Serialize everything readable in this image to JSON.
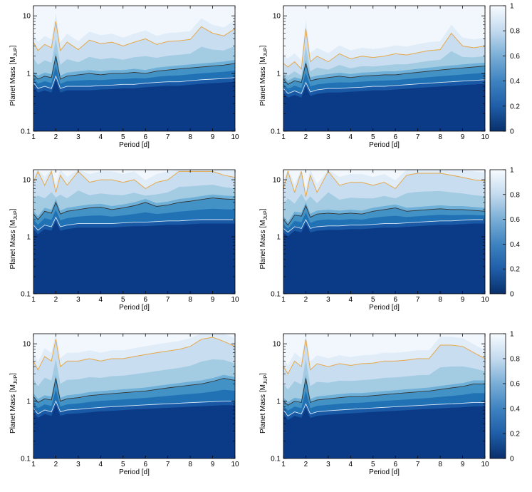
{
  "figure": {
    "panels": [
      {
        "row": 1,
        "col": 1,
        "has_colorbar": false
      },
      {
        "row": 1,
        "col": 2,
        "has_colorbar": true
      },
      {
        "row": 2,
        "col": 1,
        "has_colorbar": false
      },
      {
        "row": 2,
        "col": 2,
        "has_colorbar": true
      },
      {
        "row": 3,
        "col": 1,
        "has_colorbar": false
      },
      {
        "row": 3,
        "col": 2,
        "has_colorbar": true
      }
    ]
  },
  "chart_data": [
    {
      "type": "heatmap",
      "title": "",
      "xlabel": "Period [d]",
      "ylabel": "Planet Mass [MJUP]",
      "ylabel_main": "Planet Mass [M",
      "ylabel_sub": "JUP",
      "ylabel_end": "]",
      "xlim": [
        1,
        10
      ],
      "ylim": [
        0.1,
        15
      ],
      "yscale": "log",
      "xticks": [
        "1",
        "2",
        "3",
        "4",
        "5",
        "6",
        "7",
        "8",
        "9",
        "10"
      ],
      "yticks": [
        "0.1",
        "1",
        "10"
      ],
      "contours": {
        "orange": {
          "x": [
            1,
            1.2,
            1.5,
            1.8,
            2,
            2.2,
            2.5,
            3,
            3.5,
            4,
            4.5,
            5,
            5.5,
            6,
            6.5,
            7,
            7.5,
            8,
            8.5,
            9,
            9.5,
            10
          ],
          "y": [
            3.5,
            2.5,
            3.2,
            2.8,
            8,
            2.5,
            3.5,
            2.6,
            3.8,
            3.3,
            3.5,
            3.0,
            3.5,
            4.0,
            3.2,
            3.6,
            3.7,
            3.9,
            6.5,
            5.0,
            4.5,
            6.0
          ]
        },
        "black": {
          "x": [
            1,
            1.2,
            1.5,
            1.8,
            2,
            2.2,
            2.5,
            3,
            3.5,
            4,
            4.5,
            5,
            5.5,
            6,
            6.5,
            7,
            7.5,
            8,
            8.5,
            9,
            9.5,
            10
          ],
          "y": [
            0.95,
            0.8,
            0.9,
            0.85,
            2.0,
            0.8,
            0.9,
            0.95,
            1.0,
            0.95,
            1.0,
            1.0,
            1.05,
            1.0,
            1.1,
            1.15,
            1.2,
            1.25,
            1.3,
            1.35,
            1.4,
            1.5
          ]
        },
        "light": {
          "x": [
            1,
            1.2,
            1.5,
            1.8,
            2,
            2.2,
            2.5,
            3,
            3.5,
            4,
            4.5,
            5,
            5.5,
            6,
            6.5,
            7,
            7.5,
            8,
            8.5,
            9,
            9.5,
            10
          ],
          "y": [
            0.7,
            0.55,
            0.6,
            0.55,
            0.9,
            0.55,
            0.6,
            0.6,
            0.6,
            0.62,
            0.63,
            0.65,
            0.65,
            0.68,
            0.7,
            0.72,
            0.72,
            0.75,
            0.78,
            0.8,
            0.82,
            0.85
          ]
        }
      }
    },
    {
      "type": "heatmap",
      "title": "",
      "xlabel": "Period [d]",
      "ylabel": "Planet Mass [MJUP]",
      "ylabel_main": "Planet Mass [M",
      "ylabel_sub": "JUP",
      "ylabel_end": "]",
      "xlim": [
        1,
        10
      ],
      "ylim": [
        0.1,
        15
      ],
      "yscale": "log",
      "xticks": [
        "1",
        "2",
        "3",
        "4",
        "5",
        "6",
        "7",
        "8",
        "9",
        "10"
      ],
      "yticks": [
        "0.1",
        "1",
        "10"
      ],
      "colorbar": {
        "ticks": [
          "0",
          "0.2",
          "0.4",
          "0.6",
          "0.8",
          "1"
        ],
        "range": [
          0,
          1
        ]
      },
      "contours": {
        "orange": {
          "x": [
            1,
            1.2,
            1.5,
            1.8,
            2,
            2.2,
            2.5,
            3,
            3.5,
            4,
            4.5,
            5,
            5.5,
            6,
            6.5,
            7,
            7.5,
            8,
            8.5,
            9,
            9.5,
            10
          ],
          "y": [
            1.5,
            1.3,
            1.6,
            1.2,
            6.0,
            1.6,
            2.0,
            1.6,
            2.2,
            1.8,
            2.0,
            1.9,
            2.0,
            2.2,
            2.1,
            2.3,
            2.5,
            2.6,
            5.0,
            3.0,
            2.8,
            3.0
          ]
        },
        "black": {
          "x": [
            1,
            1.2,
            1.5,
            1.8,
            2,
            2.2,
            2.5,
            3,
            3.5,
            4,
            4.5,
            5,
            5.5,
            6,
            6.5,
            7,
            7.5,
            8,
            8.5,
            9,
            9.5,
            10
          ],
          "y": [
            0.8,
            0.65,
            0.75,
            0.7,
            1.5,
            0.75,
            0.8,
            0.85,
            0.9,
            0.85,
            0.9,
            0.92,
            0.95,
            0.95,
            1.0,
            1.05,
            1.1,
            1.15,
            1.2,
            1.25,
            1.3,
            1.35
          ]
        },
        "light": {
          "x": [
            1,
            1.2,
            1.5,
            1.8,
            2,
            2.2,
            2.5,
            3,
            3.5,
            4,
            4.5,
            5,
            5.5,
            6,
            6.5,
            7,
            7.5,
            8,
            8.5,
            9,
            9.5,
            10
          ],
          "y": [
            0.55,
            0.45,
            0.5,
            0.45,
            0.7,
            0.48,
            0.52,
            0.55,
            0.55,
            0.57,
            0.58,
            0.6,
            0.6,
            0.62,
            0.64,
            0.66,
            0.68,
            0.7,
            0.72,
            0.74,
            0.76,
            0.78
          ]
        }
      }
    },
    {
      "type": "heatmap",
      "title": "",
      "xlabel": "Period [d]",
      "ylabel": "Planet Mass [MJUP]",
      "ylabel_main": "Planet Mass [M",
      "ylabel_sub": "JUP",
      "ylabel_end": "]",
      "xlim": [
        1,
        10
      ],
      "ylim": [
        0.1,
        15
      ],
      "yscale": "log",
      "xticks": [
        "1",
        "2",
        "3",
        "4",
        "5",
        "6",
        "7",
        "8",
        "9",
        "10"
      ],
      "yticks": [
        "0.1",
        "1",
        "10"
      ],
      "contours": {
        "orange": {
          "x": [
            1,
            1.2,
            1.5,
            1.8,
            2,
            2.2,
            2.5,
            3,
            3.5,
            4,
            4.5,
            5,
            5.5,
            6,
            6.5,
            7,
            7.5,
            8,
            8.5,
            9,
            9.5,
            10
          ],
          "y": [
            9.0,
            14,
            8.0,
            14,
            6.0,
            12,
            8.0,
            14,
            9.0,
            10,
            10,
            9.0,
            10,
            7.0,
            9.0,
            10,
            14,
            14,
            14,
            14,
            12,
            11
          ]
        },
        "black": {
          "x": [
            1,
            1.2,
            1.5,
            1.8,
            2,
            2.2,
            2.5,
            3,
            3.5,
            4,
            4.5,
            5,
            5.5,
            6,
            6.5,
            7,
            7.5,
            8,
            8.5,
            9,
            9.5,
            10
          ],
          "y": [
            2.5,
            2.0,
            2.8,
            2.6,
            4.0,
            2.5,
            2.8,
            3.0,
            3.2,
            3.3,
            3.0,
            3.2,
            3.5,
            4.0,
            3.4,
            3.6,
            4.0,
            4.2,
            4.5,
            4.8,
            4.6,
            4.5
          ]
        },
        "light": {
          "x": [
            1,
            1.2,
            1.5,
            1.8,
            2,
            2.2,
            2.5,
            3,
            3.5,
            4,
            4.5,
            5,
            5.5,
            6,
            6.5,
            7,
            7.5,
            8,
            8.5,
            9,
            9.5,
            10
          ],
          "y": [
            1.6,
            1.3,
            1.6,
            1.5,
            2.2,
            1.5,
            1.6,
            1.7,
            1.7,
            1.7,
            1.7,
            1.75,
            1.8,
            1.8,
            1.85,
            1.9,
            1.9,
            1.95,
            2.0,
            2.0,
            2.0,
            2.0
          ]
        }
      }
    },
    {
      "type": "heatmap",
      "title": "",
      "xlabel": "Period [d]",
      "ylabel": "Planet Mass [MJUP]",
      "ylabel_main": "Planet Mass [M",
      "ylabel_sub": "JUP",
      "ylabel_end": "]",
      "xlim": [
        1,
        10
      ],
      "ylim": [
        0.1,
        15
      ],
      "yscale": "log",
      "xticks": [
        "1",
        "2",
        "3",
        "4",
        "5",
        "6",
        "7",
        "8",
        "9",
        "10"
      ],
      "yticks": [
        "0.1",
        "1",
        "10"
      ],
      "colorbar": {
        "ticks": [
          "0",
          "0.2",
          "0.4",
          "0.6",
          "0.8",
          "1"
        ],
        "range": [
          0,
          1
        ]
      },
      "contours": {
        "orange": {
          "x": [
            1,
            1.2,
            1.5,
            1.8,
            2,
            2.2,
            2.5,
            3,
            3.5,
            4,
            4.5,
            5,
            5.5,
            6,
            6.5,
            7,
            7.5,
            8,
            8.5,
            9,
            9.5,
            10
          ],
          "y": [
            7.0,
            14,
            6.0,
            14,
            5.0,
            12,
            6.0,
            14,
            8.0,
            9.0,
            9.0,
            8.0,
            9.0,
            7.0,
            12,
            13,
            13,
            13,
            12,
            11,
            10,
            9.5
          ]
        },
        "black": {
          "x": [
            1,
            1.2,
            1.5,
            1.8,
            2,
            2.2,
            2.5,
            3,
            3.5,
            4,
            4.5,
            5,
            5.5,
            6,
            6.5,
            7,
            7.5,
            8,
            8.5,
            9,
            9.5,
            10
          ],
          "y": [
            2.0,
            1.6,
            2.4,
            2.3,
            3.5,
            2.2,
            2.5,
            2.6,
            2.5,
            2.6,
            2.5,
            2.8,
            3.0,
            3.2,
            2.8,
            2.9,
            3.0,
            3.1,
            3.0,
            3.0,
            2.9,
            2.8
          ]
        },
        "light": {
          "x": [
            1,
            1.2,
            1.5,
            1.8,
            2,
            2.2,
            2.5,
            3,
            3.5,
            4,
            4.5,
            5,
            5.5,
            6,
            6.5,
            7,
            7.5,
            8,
            8.5,
            9,
            9.5,
            10
          ],
          "y": [
            1.4,
            1.2,
            1.5,
            1.4,
            2.0,
            1.4,
            1.5,
            1.55,
            1.55,
            1.6,
            1.6,
            1.65,
            1.7,
            1.7,
            1.75,
            1.8,
            1.85,
            1.9,
            1.9,
            1.95,
            2.0,
            2.0
          ]
        }
      }
    },
    {
      "type": "heatmap",
      "title": "",
      "xlabel": "Period [d]",
      "ylabel": "Planet Mass [MJUP]",
      "ylabel_main": "Planet Mass [M",
      "ylabel_sub": "JUP",
      "ylabel_end": "]",
      "xlim": [
        1,
        10
      ],
      "ylim": [
        0.1,
        15
      ],
      "yscale": "log",
      "xticks": [
        "1",
        "2",
        "3",
        "4",
        "5",
        "6",
        "7",
        "8",
        "9",
        "10"
      ],
      "yticks": [
        "0.1",
        "1",
        "10"
      ],
      "contours": {
        "orange": {
          "x": [
            1,
            1.2,
            1.5,
            1.8,
            2,
            2.2,
            2.5,
            3,
            3.5,
            4,
            4.5,
            5,
            5.5,
            6,
            6.5,
            7,
            7.5,
            8,
            8.5,
            9,
            9.5,
            10
          ],
          "y": [
            5.0,
            3.5,
            6.0,
            5.0,
            12,
            4.0,
            5.0,
            5.0,
            5.5,
            5.0,
            5.5,
            5.5,
            6.0,
            6.5,
            7.0,
            7.5,
            8.0,
            9.0,
            12,
            13,
            11,
            9.0
          ]
        },
        "black": {
          "x": [
            1,
            1.2,
            1.5,
            1.8,
            2,
            2.2,
            2.5,
            3,
            3.5,
            4,
            4.5,
            5,
            5.5,
            6,
            6.5,
            7,
            7.5,
            8,
            8.5,
            9,
            9.5,
            10
          ],
          "y": [
            1.2,
            0.95,
            1.1,
            1.05,
            2.5,
            1.0,
            1.1,
            1.15,
            1.25,
            1.3,
            1.35,
            1.4,
            1.45,
            1.5,
            1.6,
            1.7,
            1.8,
            1.9,
            2.0,
            2.2,
            2.5,
            2.3
          ]
        },
        "light": {
          "x": [
            1,
            1.2,
            1.5,
            1.8,
            2,
            2.2,
            2.5,
            3,
            3.5,
            4,
            4.5,
            5,
            5.5,
            6,
            6.5,
            7,
            7.5,
            8,
            8.5,
            9,
            9.5,
            10
          ],
          "y": [
            0.75,
            0.6,
            0.7,
            0.65,
            1.0,
            0.65,
            0.7,
            0.72,
            0.75,
            0.78,
            0.8,
            0.82,
            0.84,
            0.86,
            0.88,
            0.9,
            0.92,
            0.94,
            0.96,
            0.98,
            1.0,
            1.0
          ]
        }
      }
    },
    {
      "type": "heatmap",
      "title": "",
      "xlabel": "Period [d]",
      "ylabel": "Planet Mass [MJUP]",
      "ylabel_main": "Planet Mass [M",
      "ylabel_sub": "JUP",
      "ylabel_end": "]",
      "xlim": [
        1,
        10
      ],
      "ylim": [
        0.1,
        15
      ],
      "yscale": "log",
      "xticks": [
        "1",
        "2",
        "3",
        "4",
        "5",
        "6",
        "7",
        "8",
        "9",
        "10"
      ],
      "yticks": [
        "0.1",
        "1",
        "10"
      ],
      "colorbar": {
        "ticks": [
          "0",
          "0.2",
          "0.4",
          "0.6",
          "0.8",
          "1"
        ],
        "range": [
          0,
          1
        ]
      },
      "contours": {
        "orange": {
          "x": [
            1,
            1.2,
            1.5,
            1.8,
            2,
            2.2,
            2.5,
            3,
            3.5,
            4,
            4.5,
            5,
            5.5,
            6,
            6.5,
            7,
            7.5,
            8,
            8.5,
            9,
            9.5,
            10
          ],
          "y": [
            4.0,
            3.0,
            5.0,
            4.0,
            12,
            3.5,
            4.5,
            4.0,
            4.5,
            4.2,
            4.5,
            4.6,
            5.0,
            5.0,
            5.2,
            5.5,
            5.5,
            9.5,
            9.5,
            9.0,
            7.0,
            5.5
          ]
        },
        "black": {
          "x": [
            1,
            1.2,
            1.5,
            1.8,
            2,
            2.2,
            2.5,
            3,
            3.5,
            4,
            4.5,
            5,
            5.5,
            6,
            6.5,
            7,
            7.5,
            8,
            8.5,
            9,
            9.5,
            10
          ],
          "y": [
            1.0,
            0.85,
            1.0,
            0.95,
            2.5,
            0.95,
            1.05,
            1.1,
            1.15,
            1.2,
            1.2,
            1.25,
            1.3,
            1.35,
            1.4,
            1.45,
            1.5,
            1.6,
            1.7,
            1.8,
            2.0,
            2.0
          ]
        },
        "light": {
          "x": [
            1,
            1.2,
            1.5,
            1.8,
            2,
            2.2,
            2.5,
            3,
            3.5,
            4,
            4.5,
            5,
            5.5,
            6,
            6.5,
            7,
            7.5,
            8,
            8.5,
            9,
            9.5,
            10
          ],
          "y": [
            0.7,
            0.55,
            0.65,
            0.6,
            0.9,
            0.6,
            0.65,
            0.68,
            0.7,
            0.72,
            0.74,
            0.76,
            0.78,
            0.8,
            0.82,
            0.84,
            0.86,
            0.88,
            0.9,
            0.92,
            0.95,
            0.95
          ]
        }
      }
    }
  ],
  "colors": {
    "dark": "#0b3a86",
    "light": "#f2f7fd",
    "orange": "#e5a84b",
    "black": "#333333",
    "lightline": "#d7e6f5"
  }
}
